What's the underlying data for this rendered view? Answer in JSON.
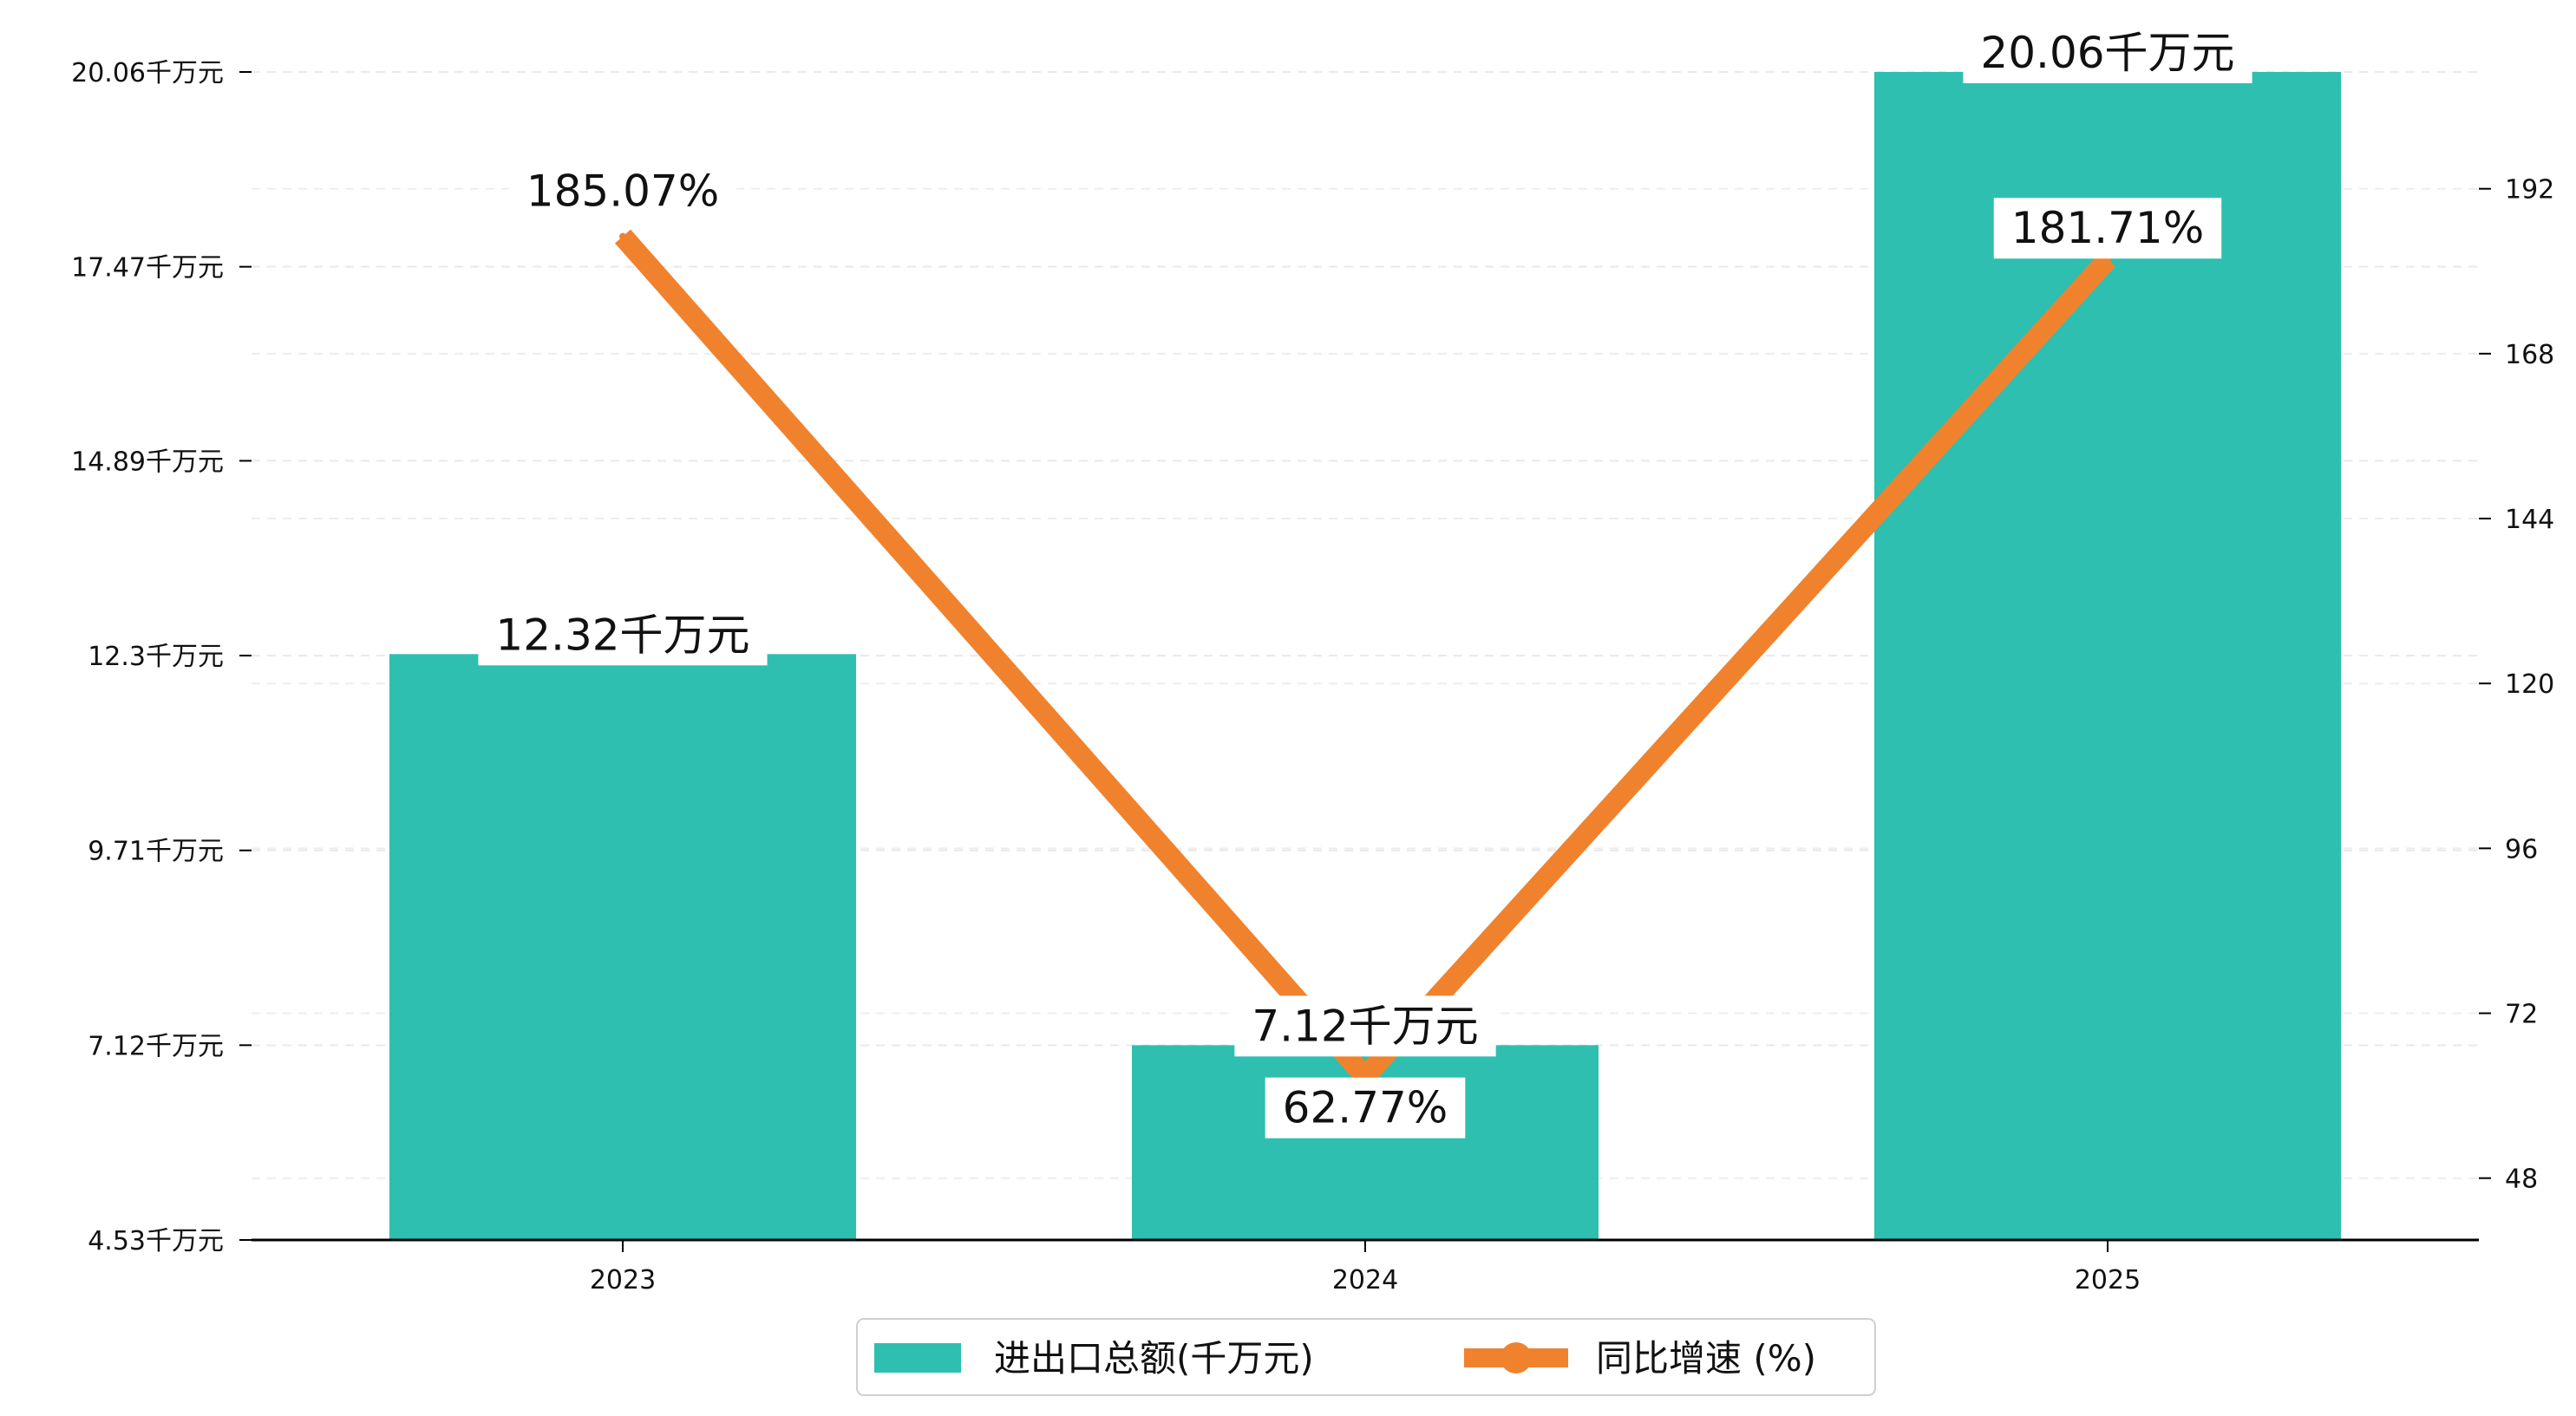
{
  "chart_data": {
    "type": "bar+line",
    "categories": [
      "2023",
      "2024",
      "2025"
    ],
    "series": [
      {
        "name": "进出口总额(千万元)",
        "type": "bar",
        "axis": "left",
        "color": "#2ebfb0",
        "values": [
          12.32,
          7.12,
          20.06
        ],
        "labels": [
          "12.32千万元",
          "7.12千万元",
          "20.06千万元"
        ]
      },
      {
        "name": "同比增速 (%)",
        "type": "line",
        "axis": "right",
        "color": "#f0822e",
        "values": [
          185.07,
          62.77,
          181.71
        ],
        "labels": [
          "185.07%",
          "62.77%",
          "181.71%"
        ]
      }
    ],
    "y_left": {
      "min": 4.53,
      "max": 20.06,
      "ticks": [
        4.53,
        7.12,
        9.71,
        12.3,
        14.89,
        17.47,
        20.06
      ],
      "tick_labels": [
        "4.53千万元",
        "7.12千万元",
        "9.71千万元",
        "12.3千万元",
        "14.89千万元",
        "17.47千万元",
        "20.06千万元"
      ]
    },
    "y_right": {
      "min": 39,
      "max": 209,
      "ticks": [
        48,
        72,
        96,
        120,
        144,
        168,
        192
      ],
      "tick_labels": [
        "48",
        "72",
        "96",
        "120",
        "144",
        "168",
        "192"
      ]
    },
    "grid": true,
    "legend_position": "bottom-center"
  }
}
